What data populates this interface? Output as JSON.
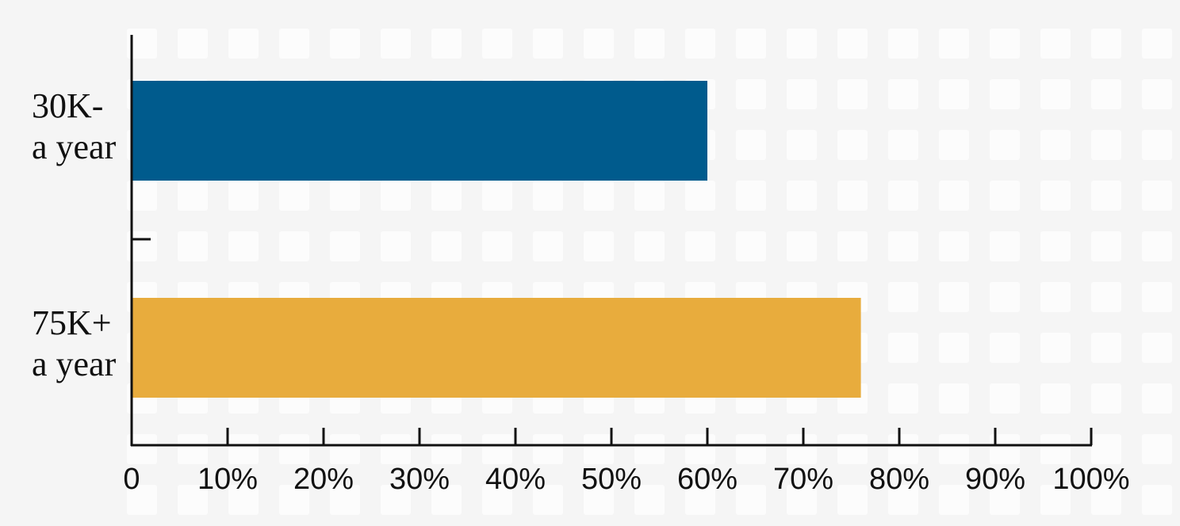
{
  "chart_data": {
    "type": "bar",
    "orientation": "horizontal",
    "categories": [
      [
        "30K-",
        "a year"
      ],
      [
        "75K+",
        "a year"
      ]
    ],
    "values": [
      60,
      76
    ],
    "bar_colors": [
      "#005b8d",
      "#e8ac3d"
    ],
    "xlim": [
      0,
      100
    ],
    "x_ticks": [
      0,
      10,
      20,
      30,
      40,
      50,
      60,
      70,
      80,
      90,
      100
    ],
    "x_tick_labels": [
      "0",
      "10%",
      "20%",
      "30%",
      "40%",
      "50%",
      "60%",
      "70%",
      "80%",
      "90%",
      "100%"
    ],
    "title": "",
    "xlabel": "",
    "ylabel": "",
    "grid": false,
    "legend": "none"
  },
  "colors": {
    "background": "#f5f5f5",
    "pattern": "#fcfcfc",
    "axis": "#111111"
  }
}
